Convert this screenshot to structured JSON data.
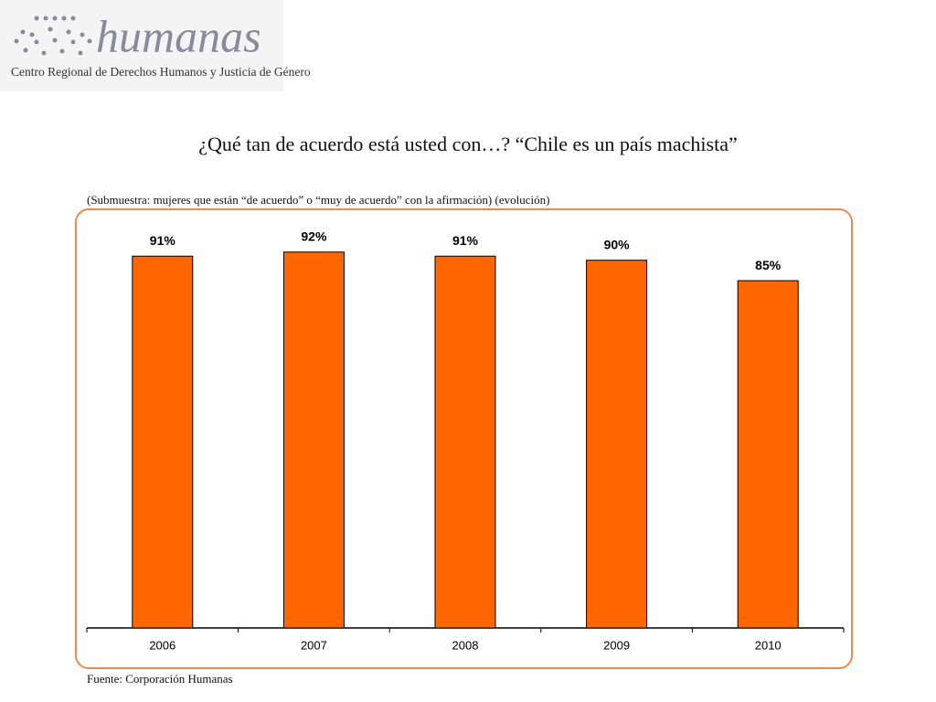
{
  "logo": {
    "name": "humanas",
    "tagline": "Centro Regional de Derechos Humanos y Justicia de Género"
  },
  "chart_data": {
    "type": "bar",
    "title": "¿Qué tan de acuerdo está usted con…? “Chile es un país machista”",
    "subtitle": "(Submuestra: mujeres que están “de acuerdo” o “muy de acuerdo” con la afirmación) (evolución)",
    "source": "Fuente: Corporación Humanas",
    "categories": [
      "2006",
      "2007",
      "2008",
      "2009",
      "2010"
    ],
    "values": [
      91,
      92,
      91,
      90,
      85
    ],
    "value_labels": [
      "91%",
      "92%",
      "91%",
      "90%",
      "85%"
    ],
    "color": "#ff6600",
    "ylim": [
      0,
      100
    ]
  }
}
